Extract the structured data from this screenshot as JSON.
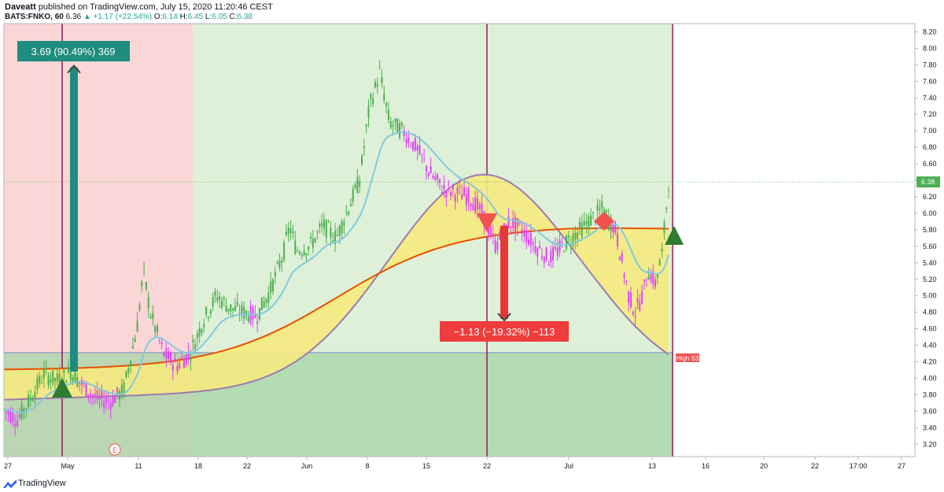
{
  "header": {
    "author": "Daveatt",
    "published": "published on TradingView.com, July 15, 2020 11:20:46 CEST",
    "symbol": "BATS:FNKO, 60",
    "last": "6.36",
    "change": "▲ +1.17 (+22.54%)",
    "o_label": "O:",
    "o_val": "6.14",
    "h_label": "H:",
    "h_val": "6.45",
    "l_label": "L:",
    "l_val": "6.05",
    "c_label": "C:",
    "c_val": "6.38"
  },
  "footer": {
    "brand": "TradingView"
  },
  "colors": {
    "up_candle": "#4caf50",
    "down_candle": "#e040fb",
    "ema": "#80cbe0",
    "cloud_fill": "#f5ea80",
    "cloud_red": "#e65100",
    "cloud_purple": "#9c7bb0",
    "bg_red": "#fbd6d6",
    "bg_green": "#dff0d8",
    "box_green": "#a5d6a7",
    "long_color": "#1e8c7e",
    "short_color": "#ef3c3c"
  },
  "chart_data": {
    "type": "candlestick",
    "ylim": [
      3.05,
      8.3
    ],
    "y_ticks": [
      "3.20",
      "3.40",
      "3.60",
      "3.80",
      "4.00",
      "4.20",
      "4.40",
      "4.60",
      "4.80",
      "5.00",
      "5.20",
      "5.40",
      "5.60",
      "5.80",
      "6.00",
      "6.20",
      "6.40",
      "6.60",
      "6.80",
      "7.00",
      "7.20",
      "7.40",
      "7.60",
      "7.80",
      "8.00",
      "8.20"
    ],
    "x_ticks": [
      "27",
      "May",
      "11",
      "18",
      "22",
      "Jun",
      "8",
      "15",
      "22",
      "Jul",
      "13",
      "16",
      "20",
      "22",
      "17:00",
      "27"
    ],
    "last_price_label": "6.38",
    "last_price": 6.38,
    "high_s3_label": "High S3",
    "high_s3_level": 4.31,
    "earnings_label": "E",
    "long_position": {
      "label": "3.69 (90.49%) 369",
      "from": 4.08,
      "to": 7.77
    },
    "short_position": {
      "label": "−1.13 (−19.32%) −113",
      "from": 5.85,
      "to": 4.72
    },
    "key_price_path": [
      [
        0,
        3.62
      ],
      [
        0.02,
        3.5
      ],
      [
        0.04,
        3.75
      ],
      [
        0.06,
        4.05
      ],
      [
        0.08,
        3.97
      ],
      [
        0.1,
        4.08
      ],
      [
        0.12,
        3.9
      ],
      [
        0.14,
        3.75
      ],
      [
        0.16,
        3.72
      ],
      [
        0.18,
        3.85
      ],
      [
        0.2,
        4.6
      ],
      [
        0.21,
        5.3
      ],
      [
        0.22,
        4.8
      ],
      [
        0.23,
        4.55
      ],
      [
        0.24,
        4.3
      ],
      [
        0.26,
        4.15
      ],
      [
        0.28,
        4.3
      ],
      [
        0.3,
        4.7
      ],
      [
        0.32,
        5.0
      ],
      [
        0.34,
        4.85
      ],
      [
        0.36,
        4.8
      ],
      [
        0.38,
        4.75
      ],
      [
        0.4,
        5.05
      ],
      [
        0.42,
        5.5
      ],
      [
        0.43,
        5.85
      ],
      [
        0.44,
        5.55
      ],
      [
        0.46,
        5.6
      ],
      [
        0.48,
        5.85
      ],
      [
        0.5,
        5.7
      ],
      [
        0.52,
        6.1
      ],
      [
        0.535,
        6.4
      ],
      [
        0.55,
        7.3
      ],
      [
        0.56,
        7.55
      ],
      [
        0.565,
        7.72
      ],
      [
        0.58,
        7.1
      ],
      [
        0.6,
        7.0
      ],
      [
        0.62,
        6.8
      ],
      [
        0.64,
        6.5
      ],
      [
        0.66,
        6.3
      ],
      [
        0.68,
        6.25
      ],
      [
        0.7,
        6.2
      ],
      [
        0.72,
        6.0
      ],
      [
        0.74,
        5.6
      ],
      [
        0.76,
        5.9
      ],
      [
        0.78,
        5.8
      ],
      [
        0.8,
        5.6
      ],
      [
        0.82,
        5.45
      ],
      [
        0.84,
        5.6
      ],
      [
        0.86,
        5.75
      ],
      [
        0.88,
        5.9
      ],
      [
        0.9,
        6.05
      ],
      [
        0.92,
        5.8
      ],
      [
        0.93,
        5.4
      ],
      [
        0.94,
        5.0
      ],
      [
        0.95,
        4.8
      ],
      [
        0.96,
        5.0
      ],
      [
        0.97,
        5.3
      ],
      [
        0.98,
        5.15
      ],
      [
        0.99,
        5.5
      ],
      [
        1.0,
        6.38
      ]
    ]
  }
}
